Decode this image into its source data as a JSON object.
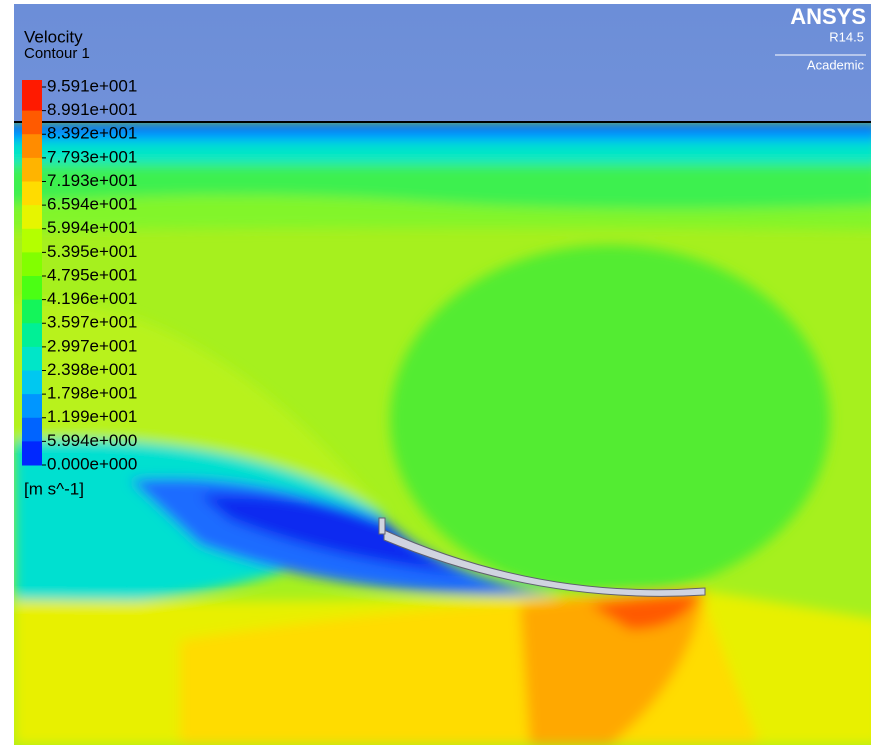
{
  "logo": {
    "brand": "ANSYS",
    "version": "R14.5",
    "license": "Academic"
  },
  "legend": {
    "title": "Velocity",
    "subtitle": "Contour 1",
    "levels": [
      "9.591e+001",
      "8.991e+001",
      "8.392e+001",
      "7.793e+001",
      "7.193e+001",
      "6.594e+001",
      "5.994e+001",
      "5.395e+001",
      "4.795e+001",
      "4.196e+001",
      "3.597e+001",
      "2.997e+001",
      "2.398e+001",
      "1.798e+001",
      "1.199e+001",
      "5.994e+000",
      "0.000e+000"
    ],
    "colors": [
      "#ff1a00",
      "#ff5a00",
      "#ff8c00",
      "#ffb400",
      "#ffdc00",
      "#e6f500",
      "#b4ff00",
      "#82ff00",
      "#4bff14",
      "#14f55a",
      "#00f096",
      "#00e6c8",
      "#00c8f0",
      "#0096ff",
      "#0064ff",
      "#0028ff"
    ],
    "unit": "[m s^-1]"
  }
}
